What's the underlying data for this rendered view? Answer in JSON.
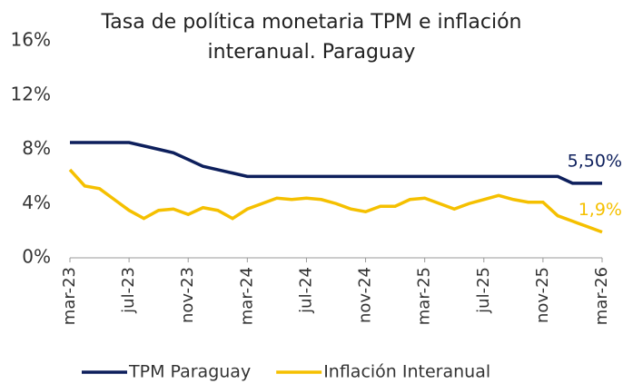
{
  "chart_data": {
    "type": "line",
    "title": "Tasa de política monetaria TPM e inflación interanual. Paraguay",
    "categories": [
      "mar-23",
      null,
      null,
      null,
      "jul-23",
      null,
      null,
      null,
      "nov-23",
      null,
      null,
      null,
      "mar-24",
      null,
      null,
      null,
      "jul-24",
      null,
      null,
      null,
      "nov-24",
      null,
      null,
      null,
      "mar-25",
      null,
      null,
      null,
      "jul-25",
      null,
      null,
      null,
      "nov-25",
      null,
      null,
      null,
      "mar-26"
    ],
    "series": [
      {
        "name": "TPM Paraguay",
        "color": "#0d1f5c",
        "values": [
          8.5,
          8.5,
          8.5,
          8.5,
          8.5,
          8.25,
          8.0,
          7.75,
          7.25,
          6.75,
          6.5,
          6.25,
          6.0,
          6.0,
          6.0,
          6.0,
          6.0,
          6.0,
          6.0,
          6.0,
          6.0,
          6.0,
          6.0,
          6.0,
          6.0,
          6.0,
          6.0,
          6.0,
          6.0,
          6.0,
          6.0,
          6.0,
          6.0,
          6.0,
          5.5,
          5.5,
          5.5
        ],
        "value_labels": [
          null,
          null,
          null,
          null,
          null,
          null,
          null,
          null,
          null,
          null,
          null,
          null,
          null,
          null,
          null,
          null,
          null,
          null,
          null,
          null,
          null,
          null,
          null,
          null,
          null,
          null,
          null,
          null,
          null,
          null,
          null,
          null,
          null,
          null,
          null,
          null,
          "5,50%"
        ]
      },
      {
        "name": "Inflación Interanual",
        "color": "#f5c000",
        "values": [
          6.5,
          5.3,
          5.1,
          4.3,
          3.5,
          2.9,
          3.5,
          3.6,
          3.2,
          3.7,
          3.5,
          2.9,
          3.6,
          4.0,
          4.4,
          4.3,
          4.4,
          4.3,
          4.0,
          3.6,
          3.4,
          3.8,
          3.8,
          4.3,
          4.4,
          4.0,
          3.6,
          4.0,
          4.3,
          4.6,
          4.3,
          4.1,
          4.1,
          3.1,
          2.7,
          2.3,
          1.9
        ],
        "value_labels": [
          null,
          null,
          null,
          null,
          null,
          null,
          null,
          null,
          null,
          null,
          null,
          null,
          null,
          null,
          null,
          null,
          null,
          null,
          null,
          null,
          null,
          null,
          null,
          null,
          null,
          null,
          null,
          null,
          null,
          null,
          null,
          null,
          null,
          null,
          null,
          null,
          "1,9%"
        ]
      }
    ],
    "ylim": [
      0,
      16
    ],
    "yticks": [
      {
        "value": 0,
        "label": "0%"
      },
      {
        "value": 4,
        "label": "4%"
      },
      {
        "value": 8,
        "label": "8%"
      },
      {
        "value": 12,
        "label": "12%"
      },
      {
        "value": 16,
        "label": "16%"
      }
    ],
    "grid": false,
    "legend": "bottom"
  }
}
